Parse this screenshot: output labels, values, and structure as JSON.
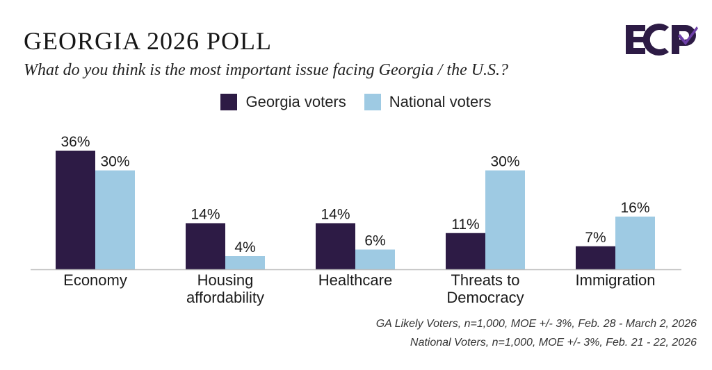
{
  "chart_data": {
    "type": "bar",
    "title": "GEORGIA 2026 POLL",
    "subtitle": "What do you think is the most important issue facing Georgia / the U.S.?",
    "categories": [
      [
        "Economy"
      ],
      [
        "Housing",
        "affordability"
      ],
      [
        "Healthcare"
      ],
      [
        "Threats to",
        "Democracy"
      ],
      [
        "Immigration"
      ]
    ],
    "series": [
      {
        "name": "Georgia voters",
        "color": "#2d1b45",
        "values": [
          36,
          14,
          14,
          11,
          7
        ],
        "labels": [
          "36%",
          "14%",
          "14%",
          "11%",
          "7%"
        ]
      },
      {
        "name": "National voters",
        "color": "#9ecae3",
        "values": [
          30,
          4,
          6,
          30,
          16
        ],
        "labels": [
          "30%",
          "4%",
          "6%",
          "30%",
          "16%"
        ]
      }
    ],
    "ylim": [
      0,
      36
    ],
    "legend_position": "top-center",
    "grid": false
  },
  "logo": {
    "text": "ECP",
    "color": "#2d1b45",
    "accent": "#6d3fa8"
  },
  "footnotes": [
    "GA Likely Voters, n=1,000, MOE +/- 3%, Feb. 28 - March 2, 2026",
    "National Voters, n=1,000, MOE +/- 3%, Feb. 21 - 22, 2026"
  ]
}
